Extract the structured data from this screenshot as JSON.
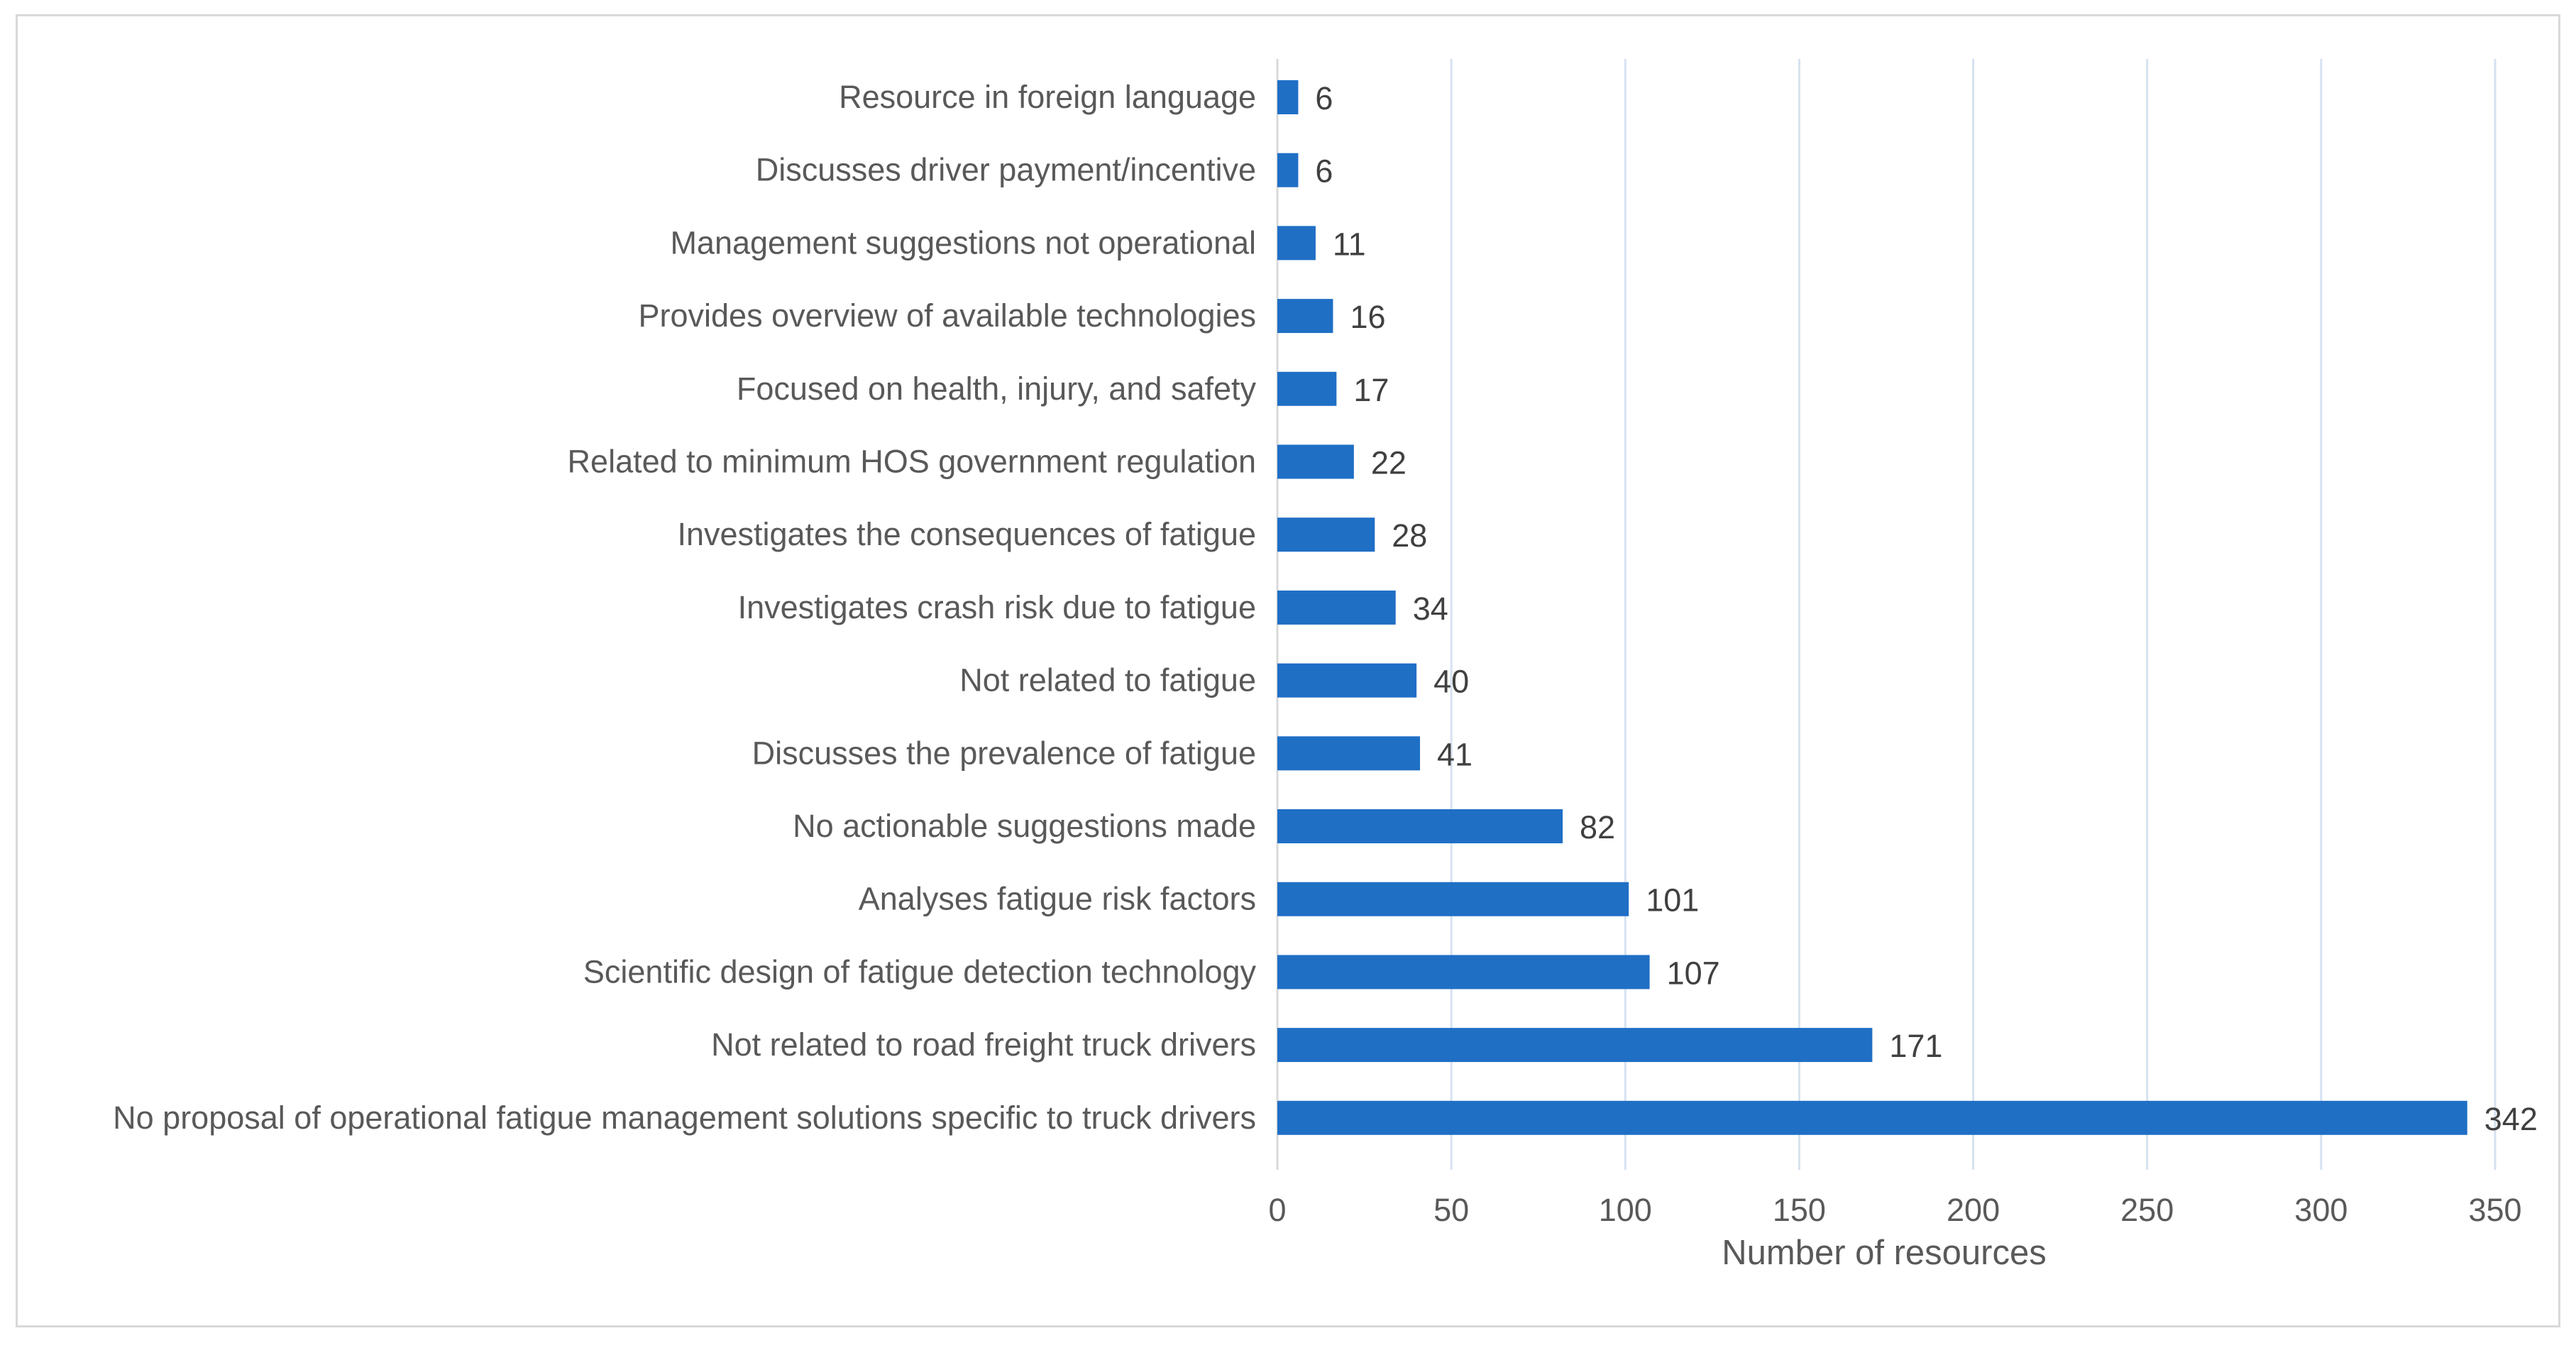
{
  "chart_data": {
    "type": "bar",
    "orientation": "horizontal",
    "categories": [
      "Resource in foreign language",
      "Discusses driver payment/incentive",
      "Management suggestions not operational",
      "Provides overview of available technologies",
      "Focused on health, injury, and safety",
      "Related to minimum HOS government regulation",
      "Investigates the consequences of fatigue",
      "Investigates crash risk due to fatigue",
      "Not related to fatigue",
      "Discusses the prevalence of fatigue",
      "No actionable suggestions made",
      "Analyses fatigue risk factors",
      "Scientific design of fatigue detection technology",
      "Not related to road freight truck drivers",
      "No proposal of operational fatigue management solutions specific to truck drivers"
    ],
    "values": [
      6,
      6,
      11,
      16,
      17,
      22,
      28,
      34,
      40,
      41,
      82,
      101,
      107,
      171,
      342
    ],
    "title": "",
    "xlabel": "Number of resources",
    "ylabel": "",
    "xlim": [
      0,
      350
    ],
    "xticks": [
      0,
      50,
      100,
      150,
      200,
      250,
      300,
      350
    ],
    "grid": "vertical",
    "legend": "none",
    "bar_color": "#1f6fc5",
    "grid_color": "#d6e2f0"
  }
}
